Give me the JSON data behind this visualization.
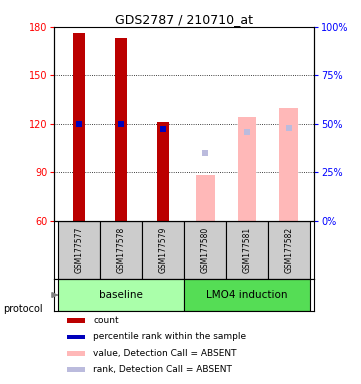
{
  "title": "GDS2787 / 210710_at",
  "samples": [
    "GSM177577",
    "GSM177578",
    "GSM177579",
    "GSM177580",
    "GSM177581",
    "GSM177582"
  ],
  "baseline_indices": [
    0,
    1,
    2
  ],
  "lmo4_indices": [
    3,
    4,
    5
  ],
  "ylim": [
    60,
    180
  ],
  "ylim_right": [
    0,
    100
  ],
  "yticks_left": [
    60,
    90,
    120,
    150,
    180
  ],
  "yticks_right": [
    0,
    25,
    50,
    75,
    100
  ],
  "count_values": [
    176,
    173,
    121,
    null,
    null,
    null
  ],
  "count_bottom": [
    60,
    60,
    60,
    null,
    null,
    null
  ],
  "percentile_left": [
    120,
    120,
    117,
    null,
    null,
    null
  ],
  "absent_value_top": [
    null,
    null,
    null,
    88,
    124,
    130
  ],
  "absent_rank_pct": [
    null,
    null,
    null,
    35,
    46,
    48
  ],
  "absent_rank_present": [
    null,
    null,
    null,
    true,
    true,
    true
  ],
  "bar_color_count": "#BB0000",
  "bar_color_percentile": "#0000BB",
  "bar_color_absent_value": "#FFB8B8",
  "bar_color_absent_rank": "#BBBBDD",
  "group_color_baseline": "#AAFFAA",
  "group_color_lmo4": "#55DD55",
  "sample_box_color": "#CCCCCC",
  "legend_items": [
    {
      "color": "#BB0000",
      "label": "count"
    },
    {
      "color": "#0000BB",
      "label": "percentile rank within the sample"
    },
    {
      "color": "#FFB8B8",
      "label": "value, Detection Call = ABSENT"
    },
    {
      "color": "#BBBBDD",
      "label": "rank, Detection Call = ABSENT"
    }
  ]
}
